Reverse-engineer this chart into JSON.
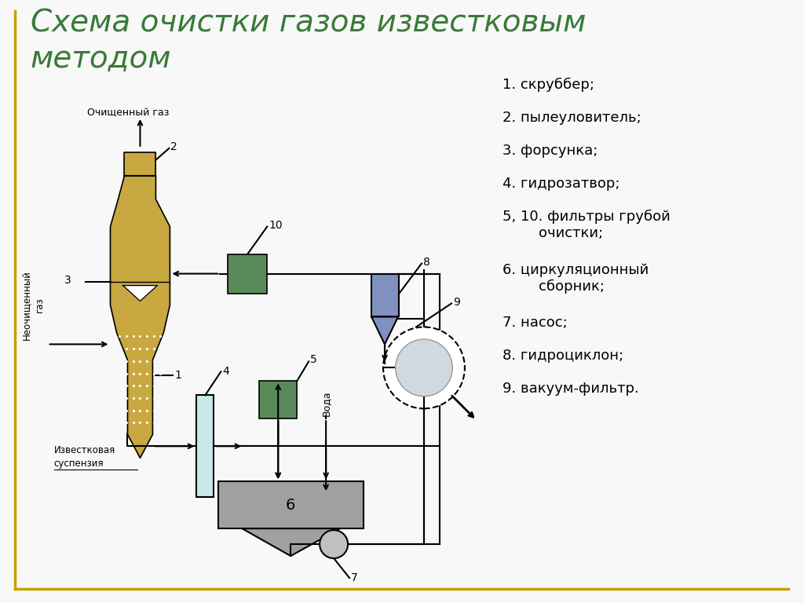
{
  "title_line1": "Схема очистки газов известковым",
  "title_line2": "методом",
  "title_color": "#3a7a3a",
  "bg_color": "#f8f8f8",
  "border_color": "#c8a000",
  "legend_items": [
    "1. скруббер;",
    "2. пылеуловитель;",
    "3. форсунка;",
    "4. гидрозатвор;",
    "5, 10. фильтры грубой\n        очистки;",
    "6. циркуляционный\n        сборник;",
    "7. насос;",
    "8. гидроциклон;",
    "9. вакуум-фильтр."
  ],
  "scrubber_color": "#c8a840",
  "filter_color": "#5a8a5a",
  "collector_color": "#a0a0a0",
  "hydrocyclone_color": "#8090c0",
  "hydrozatvor_color": "#c8e8e8",
  "pipe_color": "#000000",
  "label_fontsize": 10,
  "legend_fontsize": 13,
  "title_fontsize": 28
}
